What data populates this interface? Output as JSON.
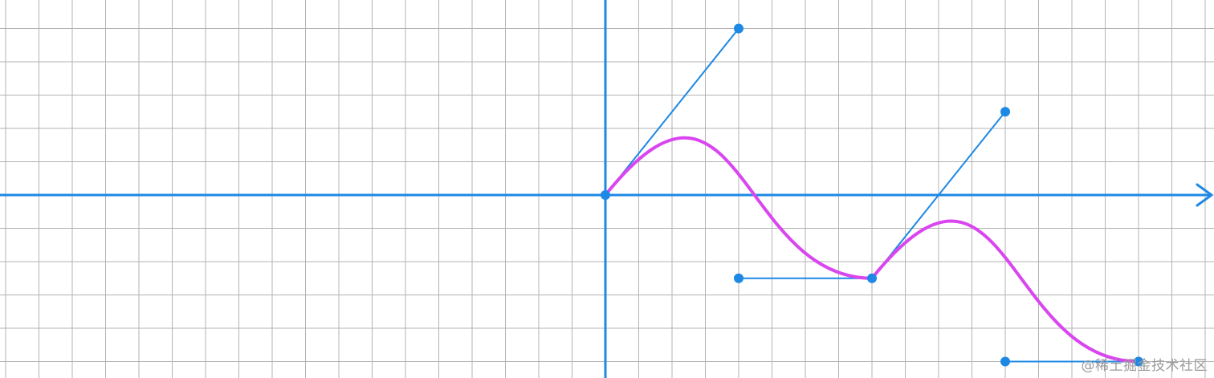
{
  "diagram": {
    "type": "bezier-curve-on-grid",
    "colors": {
      "background": "#ffffff",
      "grid": "#b3b3b3",
      "axis": "#1e88e5",
      "control": "#1e88e5",
      "curve": "#d946ef"
    },
    "segments": [
      {
        "start": [
          0,
          0
        ],
        "control1": [
          4,
          5
        ],
        "control2": [
          4,
          -2.5
        ],
        "end": [
          8,
          -2.5
        ]
      },
      {
        "start": [
          8,
          -2.5
        ],
        "control1": [
          12,
          2.5
        ],
        "control2": [
          12,
          -5
        ],
        "end": [
          16,
          -5
        ]
      }
    ]
  },
  "watermark": {
    "text": "@稀土掘金技术社区"
  }
}
